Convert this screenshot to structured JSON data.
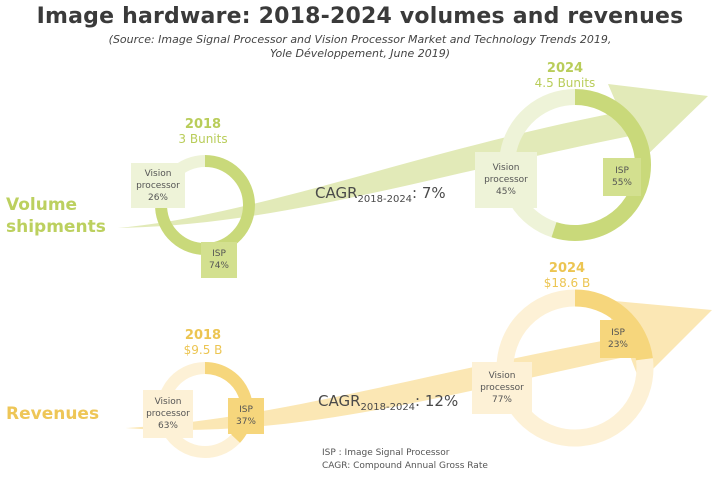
{
  "header": {
    "title": "Image hardware: 2018-2024 volumes and revenues",
    "source_line1": "(Source: Image Signal Processor and Vision Processor Market and Technology Trends 2019,",
    "source_line2": "Yole Développement, June 2019)"
  },
  "colors": {
    "volume_dark": "#c9d97a",
    "volume_mid": "#dbe6a6",
    "volume_light": "#eef3d8",
    "volume_label": "#b9cd5a",
    "revenue_dark": "#f6d67c",
    "revenue_mid": "#fae3a6",
    "revenue_light": "#fdf1d6",
    "revenue_label": "#ecc552",
    "text": "#4a4a4a"
  },
  "chart_data": [
    {
      "type": "pie",
      "title": "Volume shipments",
      "row_label_line1": "Volume",
      "row_label_line2": "shipments",
      "cagr_prefix": "CAGR",
      "cagr_sub": "2018-2024",
      "cagr_value": ": 7%",
      "years": [
        {
          "year": "2018",
          "total": "3 Bunits",
          "total_value": 3,
          "unit": "Bunits",
          "slices": [
            {
              "name_line1": "Vision",
              "name_line2": "processor",
              "label": "26%",
              "value": 26
            },
            {
              "name_line1": "ISP",
              "name_line2": "",
              "label": "74%",
              "value": 74
            }
          ]
        },
        {
          "year": "2024",
          "total": "4.5 Bunits",
          "total_value": 4.5,
          "unit": "Bunits",
          "slices": [
            {
              "name_line1": "Vision",
              "name_line2": "processor",
              "label": "45%",
              "value": 45
            },
            {
              "name_line1": "ISP",
              "name_line2": "",
              "label": "55%",
              "value": 55
            }
          ]
        }
      ]
    },
    {
      "type": "pie",
      "title": "Revenues",
      "row_label_line1": "Revenues",
      "row_label_line2": "",
      "cagr_prefix": "CAGR",
      "cagr_sub": "2018-2024",
      "cagr_value": ": 12%",
      "years": [
        {
          "year": "2018",
          "total": "$9.5 B",
          "total_value": 9.5,
          "unit": "$B",
          "slices": [
            {
              "name_line1": "Vision",
              "name_line2": "processor",
              "label": "63%",
              "value": 63
            },
            {
              "name_line1": "ISP",
              "name_line2": "",
              "label": "37%",
              "value": 37
            }
          ]
        },
        {
          "year": "2024",
          "total": "$18.6 B",
          "total_value": 18.6,
          "unit": "$B",
          "slices": [
            {
              "name_line1": "Vision",
              "name_line2": "processor",
              "label": "77%",
              "value": 77
            },
            {
              "name_line1": "ISP",
              "name_line2": "",
              "label": "23%",
              "value": 23
            }
          ]
        }
      ]
    }
  ],
  "footnote": {
    "line1": "ISP : Image Signal Processor",
    "line2": "CAGR: Compound Annual Gross Rate"
  }
}
